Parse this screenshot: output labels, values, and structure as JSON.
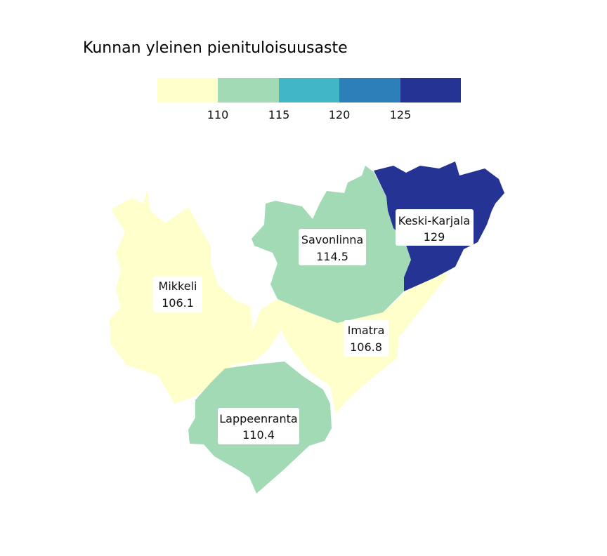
{
  "title": "Kunnan yleinen pienituloisuusaste",
  "legend": {
    "bins": [
      {
        "color": "#ffffcc"
      },
      {
        "color": "#a1dab4"
      },
      {
        "color": "#41b6c4"
      },
      {
        "color": "#2c7fb8"
      },
      {
        "color": "#253494"
      }
    ],
    "ticks": [
      "110",
      "115",
      "120",
      "125"
    ]
  },
  "regions": [
    {
      "name": "Mikkeli",
      "value": "106.1",
      "color": "#ffffcc"
    },
    {
      "name": "Imatra",
      "value": "106.8",
      "color": "#ffffcc"
    },
    {
      "name": "Lappeenranta",
      "value": "110.4",
      "color": "#a1dab4"
    },
    {
      "name": "Savonlinna",
      "value": "114.5",
      "color": "#a1dab4"
    },
    {
      "name": "Keski-Karjala",
      "value": "129",
      "color": "#253494"
    }
  ]
}
